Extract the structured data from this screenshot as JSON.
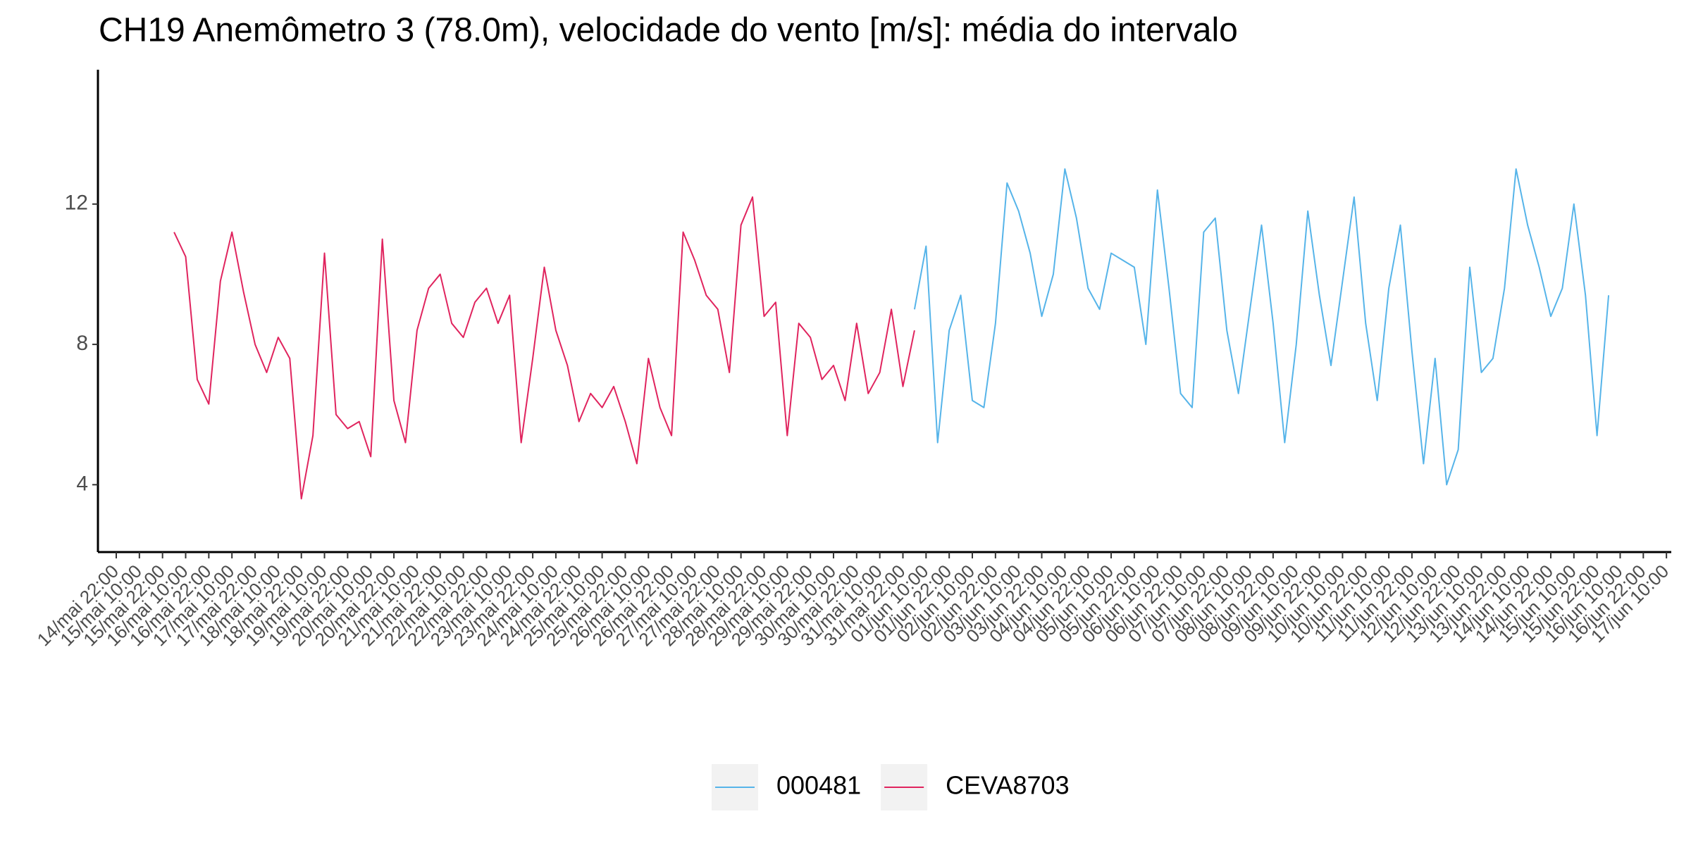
{
  "chart_data": {
    "type": "line",
    "title": "CH19 Anemômetro 3 (78.0m), velocidade do vento [m/s]: média do intervalo",
    "xlim": [
      "14/mai 12:30",
      "17/jun 12:30"
    ],
    "xticks": [
      "14/mai 22:00",
      "15/mai 10:00",
      "15/mai 22:00",
      "16/mai 10:00",
      "16/mai 22:00",
      "17/mai 10:00",
      "17/mai 22:00",
      "18/mai 10:00",
      "18/mai 22:00",
      "19/mai 10:00",
      "19/mai 22:00",
      "20/mai 10:00",
      "20/mai 22:00",
      "21/mai 10:00",
      "21/mai 22:00",
      "22/mai 10:00",
      "22/mai 22:00",
      "23/mai 10:00",
      "23/mai 22:00",
      "24/mai 10:00",
      "24/mai 22:00",
      "25/mai 10:00",
      "25/mai 22:00",
      "26/mai 10:00",
      "26/mai 22:00",
      "27/mai 10:00",
      "27/mai 22:00",
      "28/mai 10:00",
      "28/mai 22:00",
      "29/mai 10:00",
      "29/mai 22:00",
      "30/mai 10:00",
      "30/mai 22:00",
      "31/mai 10:00",
      "31/mai 22:00",
      "01/jun 10:00",
      "01/jun 22:00",
      "02/jun 10:00",
      "02/jun 22:00",
      "03/jun 10:00",
      "03/jun 22:00",
      "04/jun 10:00",
      "04/jun 22:00",
      "05/jun 10:00",
      "05/jun 22:00",
      "06/jun 10:00",
      "06/jun 22:00",
      "07/jun 10:00",
      "07/jun 22:00",
      "08/jun 10:00",
      "08/jun 22:00",
      "09/jun 10:00",
      "09/jun 22:00",
      "10/jun 10:00",
      "10/jun 22:00",
      "11/jun 10:00",
      "11/jun 22:00",
      "12/jun 10:00",
      "12/jun 22:00",
      "13/jun 10:00",
      "13/jun 22:00",
      "14/jun 10:00",
      "14/jun 22:00",
      "15/jun 10:00",
      "15/jun 22:00",
      "16/jun 10:00",
      "16/jun 22:00",
      "17/jun 10:00"
    ],
    "ylim": [
      2.08,
      15.83
    ],
    "yticks": [
      4,
      8,
      12
    ],
    "grid": false,
    "legend": "bottom",
    "series": [
      {
        "name": "000481",
        "color": "#56b4e9",
        "x": [
          "01/jun 04:00",
          "01/jun 10:00",
          "01/jun 16:00",
          "01/jun 22:00",
          "02/jun 04:00",
          "02/jun 10:00",
          "02/jun 16:00",
          "02/jun 22:00",
          "03/jun 04:00",
          "03/jun 10:00",
          "03/jun 16:00",
          "03/jun 22:00",
          "04/jun 04:00",
          "04/jun 10:00",
          "04/jun 16:00",
          "04/jun 22:00",
          "05/jun 04:00",
          "05/jun 10:00",
          "05/jun 16:00",
          "05/jun 22:00",
          "06/jun 04:00",
          "06/jun 10:00",
          "06/jun 16:00",
          "06/jun 22:00",
          "07/jun 04:00",
          "07/jun 10:00",
          "07/jun 16:00",
          "07/jun 22:00",
          "08/jun 04:00",
          "08/jun 10:00",
          "08/jun 16:00",
          "08/jun 22:00",
          "09/jun 04:00",
          "09/jun 10:00",
          "09/jun 16:00",
          "09/jun 22:00",
          "10/jun 04:00",
          "10/jun 10:00",
          "10/jun 16:00",
          "10/jun 22:00",
          "11/jun 04:00",
          "11/jun 10:00",
          "11/jun 16:00",
          "11/jun 22:00",
          "12/jun 04:00",
          "12/jun 10:00",
          "12/jun 16:00",
          "12/jun 22:00",
          "13/jun 04:00",
          "13/jun 10:00",
          "13/jun 16:00",
          "13/jun 22:00",
          "14/jun 04:00",
          "14/jun 10:00",
          "14/jun 16:00",
          "14/jun 22:00",
          "15/jun 04:00",
          "15/jun 10:00",
          "15/jun 16:00",
          "15/jun 22:00",
          "16/jun 04:00"
        ],
        "values": [
          9.0,
          10.8,
          5.2,
          8.4,
          9.4,
          6.4,
          6.2,
          8.6,
          12.6,
          11.8,
          10.6,
          8.8,
          10.0,
          13.0,
          11.6,
          9.6,
          9.0,
          10.6,
          10.4,
          10.2,
          8.0,
          12.4,
          9.6,
          6.6,
          6.2,
          11.2,
          11.6,
          8.4,
          6.6,
          9.0,
          11.4,
          8.6,
          5.2,
          8.0,
          11.8,
          9.4,
          7.4,
          9.8,
          12.2,
          8.6,
          6.4,
          9.6,
          11.4,
          7.8,
          4.6,
          7.6,
          4.0,
          5.0,
          10.2,
          7.2,
          7.6,
          9.6,
          13.0,
          11.4,
          10.2,
          8.8,
          9.6,
          12.0,
          9.4,
          5.4,
          9.4
        ]
      },
      {
        "name": "CEVA8703",
        "color": "#e0245e",
        "x": [
          "16/mai 04:00",
          "16/mai 10:00",
          "16/mai 16:00",
          "16/mai 22:00",
          "17/mai 04:00",
          "17/mai 10:00",
          "17/mai 16:00",
          "17/mai 22:00",
          "18/mai 04:00",
          "18/mai 10:00",
          "18/mai 16:00",
          "18/mai 22:00",
          "19/mai 04:00",
          "19/mai 10:00",
          "19/mai 16:00",
          "19/mai 22:00",
          "20/mai 04:00",
          "20/mai 10:00",
          "20/mai 16:00",
          "20/mai 22:00",
          "21/mai 04:00",
          "21/mai 10:00",
          "21/mai 16:00",
          "21/mai 22:00",
          "22/mai 04:00",
          "22/mai 10:00",
          "22/mai 16:00",
          "22/mai 22:00",
          "23/mai 04:00",
          "23/mai 10:00",
          "23/mai 16:00",
          "23/mai 22:00",
          "24/mai 04:00",
          "24/mai 10:00",
          "24/mai 16:00",
          "24/mai 22:00",
          "25/mai 04:00",
          "25/mai 10:00",
          "25/mai 16:00",
          "25/mai 22:00",
          "26/mai 04:00",
          "26/mai 10:00",
          "26/mai 16:00",
          "26/mai 22:00",
          "27/mai 04:00",
          "27/mai 10:00",
          "27/mai 16:00",
          "27/mai 22:00",
          "28/mai 04:00",
          "28/mai 10:00",
          "28/mai 16:00",
          "28/mai 22:00",
          "29/mai 04:00",
          "29/mai 10:00",
          "29/mai 16:00",
          "29/mai 22:00",
          "30/mai 04:00",
          "30/mai 10:00",
          "30/mai 16:00",
          "30/mai 22:00",
          "31/mai 04:00",
          "31/mai 10:00",
          "31/mai 16:00",
          "31/mai 22:00",
          "01/jun 04:00"
        ],
        "values": [
          11.2,
          10.5,
          7.0,
          6.3,
          9.8,
          11.2,
          9.5,
          8.0,
          7.2,
          8.2,
          7.6,
          3.6,
          5.4,
          10.6,
          6.0,
          5.6,
          5.8,
          4.8,
          11.0,
          6.4,
          5.2,
          8.4,
          9.6,
          10.0,
          8.6,
          8.2,
          9.2,
          9.6,
          8.6,
          9.4,
          5.2,
          7.6,
          10.2,
          8.4,
          7.4,
          5.8,
          6.6,
          6.2,
          6.8,
          5.8,
          4.6,
          7.6,
          6.2,
          5.4,
          11.2,
          10.4,
          9.4,
          9.0,
          7.2,
          11.4,
          12.2,
          8.8,
          9.2,
          5.4,
          8.6,
          8.2,
          7.0,
          7.4,
          6.4,
          8.6,
          6.6,
          7.2,
          9.0,
          6.8,
          8.4
        ]
      }
    ]
  }
}
